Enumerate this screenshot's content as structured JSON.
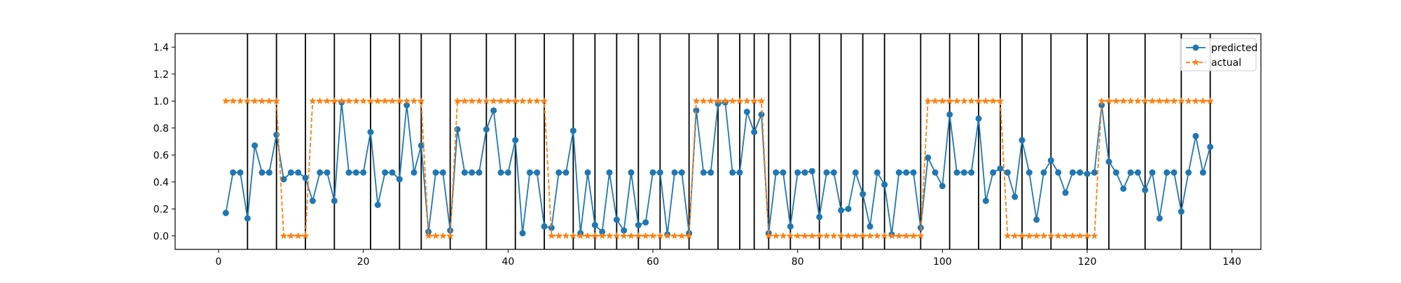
{
  "chart_data": {
    "type": "line",
    "title": "",
    "xlabel": "",
    "ylabel": "",
    "xlim": [
      -6,
      144
    ],
    "ylim": [
      -0.1,
      1.5
    ],
    "xticks": [
      0,
      20,
      40,
      60,
      80,
      100,
      120,
      140
    ],
    "yticks": [
      0.0,
      0.2,
      0.4,
      0.6,
      0.8,
      1.0,
      1.2,
      1.4
    ],
    "xtick_labels": [
      "0",
      "20",
      "40",
      "60",
      "80",
      "100",
      "120",
      "140"
    ],
    "ytick_labels": [
      "0.0",
      "0.2",
      "0.4",
      "0.6",
      "0.8",
      "1.0",
      "1.2",
      "1.4"
    ],
    "grid": false,
    "legend_position": "top-right",
    "vertical_lines_x": [
      4,
      8,
      12,
      16,
      21,
      25,
      28,
      32,
      37,
      41,
      45,
      49,
      52,
      55,
      58,
      61,
      65,
      69,
      72,
      74,
      76,
      79,
      83,
      86,
      89,
      92,
      97,
      101,
      105,
      108,
      111,
      115,
      120,
      123,
      128,
      133,
      137
    ],
    "series": [
      {
        "name": "predicted",
        "color": "#1f77b4",
        "marker": "circle",
        "linestyle": "solid",
        "x": [
          1,
          2,
          3,
          4,
          5,
          6,
          7,
          8,
          9,
          10,
          11,
          12,
          13,
          14,
          15,
          16,
          17,
          18,
          19,
          20,
          21,
          22,
          23,
          24,
          25,
          26,
          27,
          28,
          29,
          30,
          31,
          32,
          33,
          34,
          35,
          36,
          37,
          38,
          39,
          40,
          41,
          42,
          43,
          44,
          45,
          46,
          47,
          48,
          49,
          50,
          51,
          52,
          53,
          54,
          55,
          56,
          57,
          58,
          59,
          60,
          61,
          62,
          63,
          64,
          65,
          66,
          67,
          68,
          69,
          70,
          71,
          72,
          73,
          74,
          75,
          76,
          77,
          78,
          79,
          80,
          81,
          82,
          83,
          84,
          85,
          86,
          87,
          88,
          89,
          90,
          91,
          92,
          93,
          94,
          95,
          96,
          97,
          98,
          99,
          100,
          101,
          102,
          103,
          104,
          105,
          106,
          107,
          108,
          109,
          110,
          111,
          112,
          113,
          114,
          115,
          116,
          117,
          118,
          119,
          120,
          121,
          122,
          123,
          124,
          125,
          126,
          127,
          128,
          129,
          130,
          131,
          132,
          133,
          134,
          135,
          136,
          137
        ],
        "values": [
          0.17,
          0.47,
          0.47,
          0.13,
          0.67,
          0.47,
          0.47,
          0.75,
          0.42,
          0.47,
          0.47,
          0.43,
          0.26,
          0.47,
          0.47,
          0.26,
          0.99,
          0.47,
          0.47,
          0.47,
          0.77,
          0.23,
          0.47,
          0.47,
          0.42,
          0.97,
          0.47,
          0.67,
          0.03,
          0.47,
          0.47,
          0.04,
          0.79,
          0.47,
          0.47,
          0.47,
          0.79,
          0.93,
          0.47,
          0.47,
          0.71,
          0.02,
          0.47,
          0.47,
          0.07,
          0.06,
          0.47,
          0.47,
          0.78,
          0.02,
          0.47,
          0.08,
          0.03,
          0.47,
          0.12,
          0.04,
          0.47,
          0.08,
          0.1,
          0.47,
          0.47,
          0.01,
          0.47,
          0.47,
          0.02,
          0.93,
          0.47,
          0.47,
          0.98,
          0.99,
          0.47,
          0.47,
          0.92,
          0.77,
          0.9,
          0.02,
          0.47,
          0.47,
          0.07,
          0.47,
          0.47,
          0.48,
          0.14,
          0.47,
          0.47,
          0.19,
          0.2,
          0.47,
          0.31,
          0.07,
          0.47,
          0.38,
          0.01,
          0.47,
          0.47,
          0.47,
          0.06,
          0.58,
          0.47,
          0.37,
          0.9,
          0.47,
          0.47,
          0.47,
          0.87,
          0.26,
          0.47,
          0.5,
          0.47,
          0.29,
          0.71,
          0.47,
          0.12,
          0.47,
          0.56,
          0.47,
          0.32,
          0.47,
          0.47,
          0.46,
          0.47,
          0.97,
          0.55,
          0.47,
          0.35,
          0.47,
          0.47,
          0.34,
          0.47,
          0.13,
          0.47,
          0.47,
          0.18,
          0.47,
          0.74,
          0.47,
          0.66
        ]
      },
      {
        "name": "actual",
        "color": "#ff7f0e",
        "marker": "star",
        "linestyle": "dashed",
        "x": [
          1,
          2,
          3,
          4,
          5,
          6,
          7,
          8,
          9,
          10,
          11,
          12,
          13,
          14,
          15,
          16,
          17,
          18,
          19,
          20,
          21,
          22,
          23,
          24,
          25,
          26,
          27,
          28,
          29,
          30,
          31,
          32,
          33,
          34,
          35,
          36,
          37,
          38,
          39,
          40,
          41,
          42,
          43,
          44,
          45,
          46,
          47,
          48,
          49,
          50,
          51,
          52,
          53,
          54,
          55,
          56,
          57,
          58,
          59,
          60,
          61,
          62,
          63,
          64,
          65,
          66,
          67,
          68,
          69,
          70,
          71,
          72,
          73,
          74,
          75,
          76,
          77,
          78,
          79,
          80,
          81,
          82,
          83,
          84,
          85,
          86,
          87,
          88,
          89,
          90,
          91,
          92,
          93,
          94,
          95,
          96,
          97,
          98,
          99,
          100,
          101,
          102,
          103,
          104,
          105,
          106,
          107,
          108,
          109,
          110,
          111,
          112,
          113,
          114,
          115,
          116,
          117,
          118,
          119,
          120,
          121,
          122,
          123,
          124,
          125,
          126,
          127,
          128,
          129,
          130,
          131,
          132,
          133,
          134,
          135,
          136,
          137
        ],
        "values": [
          1,
          1,
          1,
          1,
          1,
          1,
          1,
          1,
          0,
          0,
          0,
          0,
          1,
          1,
          1,
          1,
          1,
          1,
          1,
          1,
          1,
          1,
          1,
          1,
          1,
          1,
          1,
          1,
          0,
          0,
          0,
          0,
          1,
          1,
          1,
          1,
          1,
          1,
          1,
          1,
          1,
          1,
          1,
          1,
          1,
          0,
          0,
          0,
          0,
          0,
          0,
          0,
          0,
          0,
          0,
          0,
          0,
          0,
          0,
          0,
          0,
          0,
          0,
          0,
          0,
          1,
          1,
          1,
          1,
          1,
          1,
          1,
          1,
          1,
          1,
          0,
          0,
          0,
          0,
          0,
          0,
          0,
          0,
          0,
          0,
          0,
          0,
          0,
          0,
          0,
          0,
          0,
          0,
          0,
          0,
          0,
          0,
          1,
          1,
          1,
          1,
          1,
          1,
          1,
          1,
          1,
          1,
          1,
          0,
          0,
          0,
          0,
          0,
          0,
          0,
          0,
          0,
          0,
          0,
          0,
          0,
          1,
          1,
          1,
          1,
          1,
          1,
          1,
          1,
          1,
          1,
          1,
          1,
          1,
          1,
          1,
          1
        ]
      }
    ]
  }
}
